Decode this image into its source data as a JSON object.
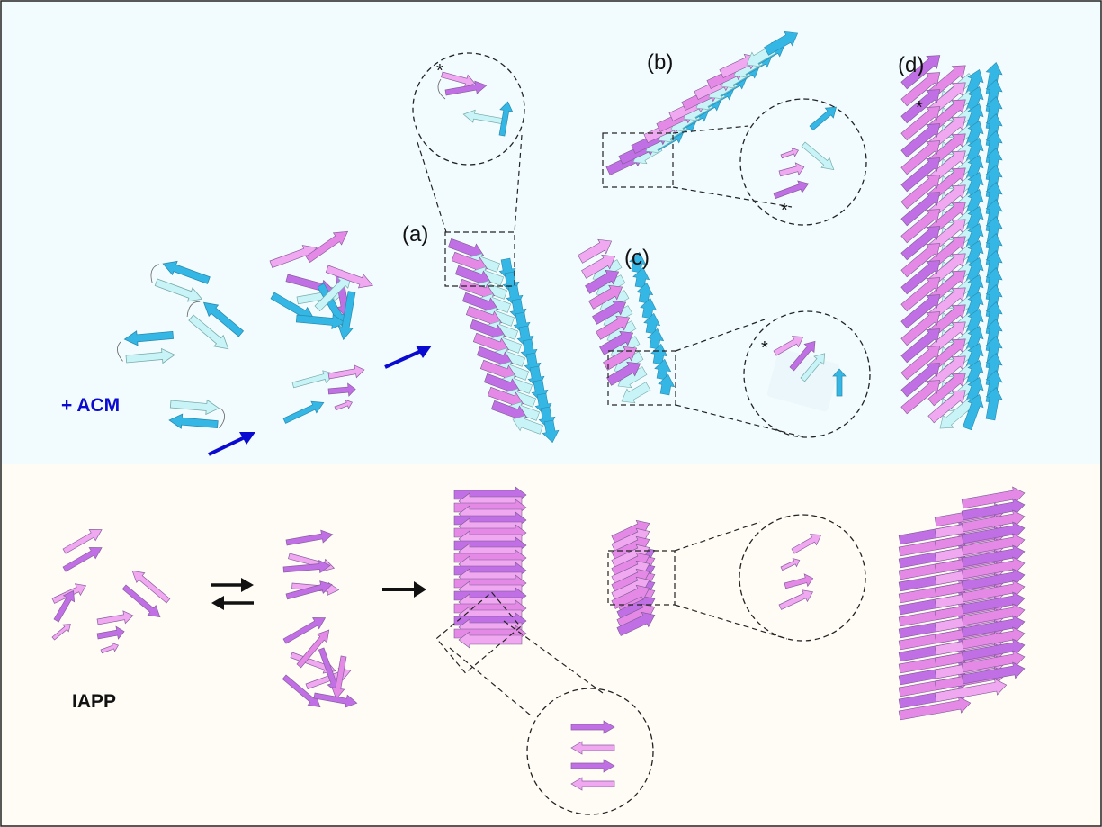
{
  "labels": {
    "panel_a": "(a)",
    "panel_b": "(b)",
    "panel_c": "(c)",
    "panel_d": "(d)",
    "acm": "+ ACM",
    "iapp": "IAPP",
    "star": "*"
  },
  "colors": {
    "top_bg": "#f2fcfe",
    "bottom_bg": "#fffcf6",
    "pink_light": "#f0a8f0",
    "pink_mid": "#e48ae6",
    "purple": "#c070e4",
    "cyan_light": "#c8f4f8",
    "cyan": "#34b7e4",
    "blue_arrow": "#0a0ad0",
    "black": "#111111"
  }
}
